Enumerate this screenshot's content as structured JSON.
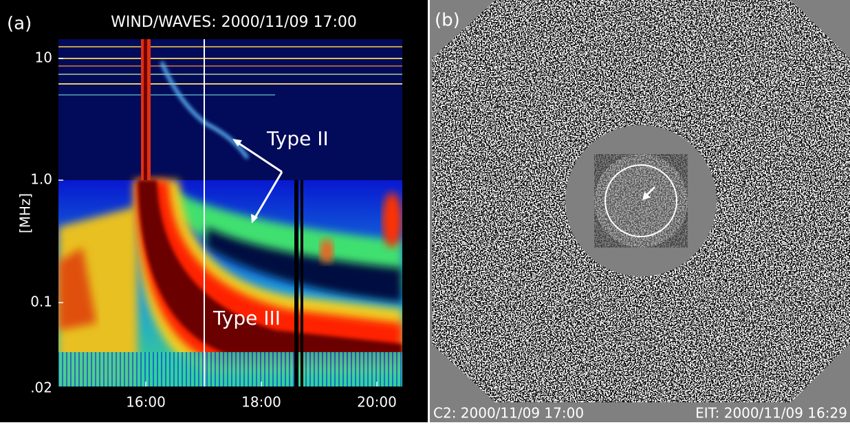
{
  "panel_a": {
    "label": "(a)",
    "title": "WIND/WAVES: 2000/11/09 17:00",
    "y_axis_label": "[MHz]",
    "y_ticks": [
      "10",
      "1.0",
      "0.1",
      ".02"
    ],
    "x_ticks": [
      "16:00",
      "18:00",
      "20:00"
    ],
    "annotations": [
      "Type II",
      "Type III"
    ]
  },
  "panel_b": {
    "label": "(b)",
    "caption_left": "C2: 2000/11/09 17:00",
    "caption_right": "EIT: 2000/11/09 16:29"
  }
}
